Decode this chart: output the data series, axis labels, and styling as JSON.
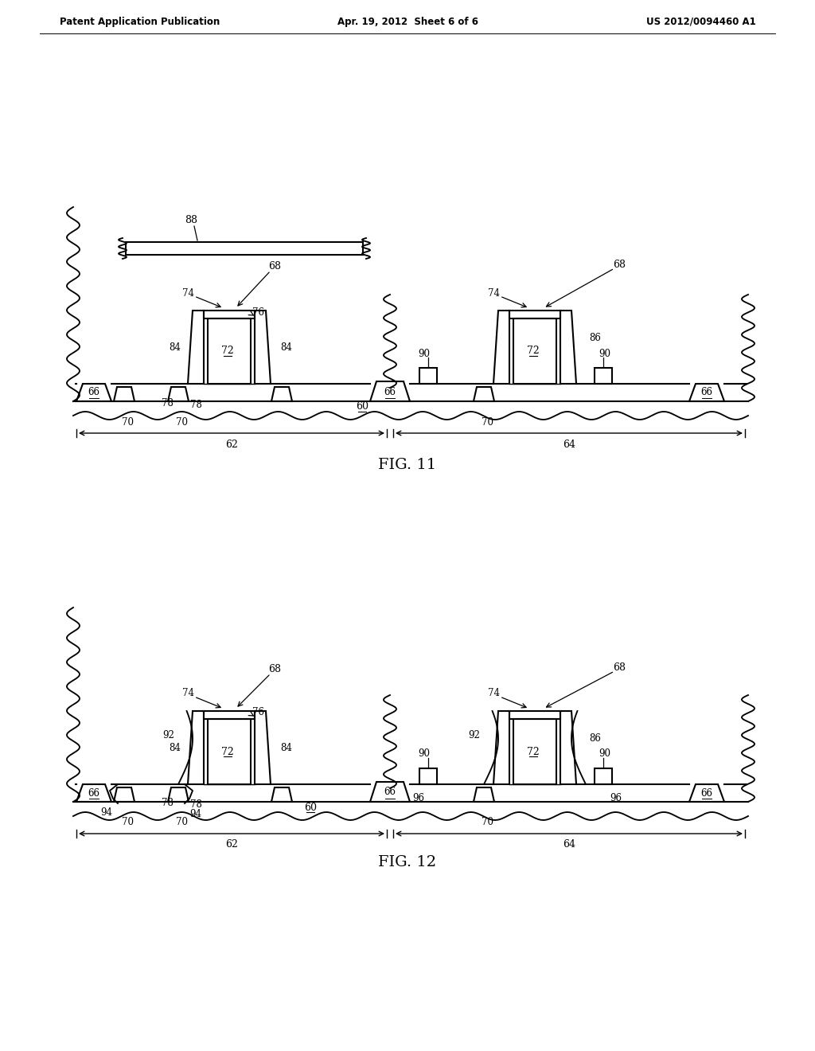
{
  "background_color": "#ffffff",
  "line_color": "#000000",
  "header_left": "Patent Application Publication",
  "header_center": "Apr. 19, 2012  Sheet 6 of 6",
  "header_right": "US 2012/0094460 A1",
  "fig11_caption": "FIG. 11",
  "fig12_caption": "FIG. 12"
}
